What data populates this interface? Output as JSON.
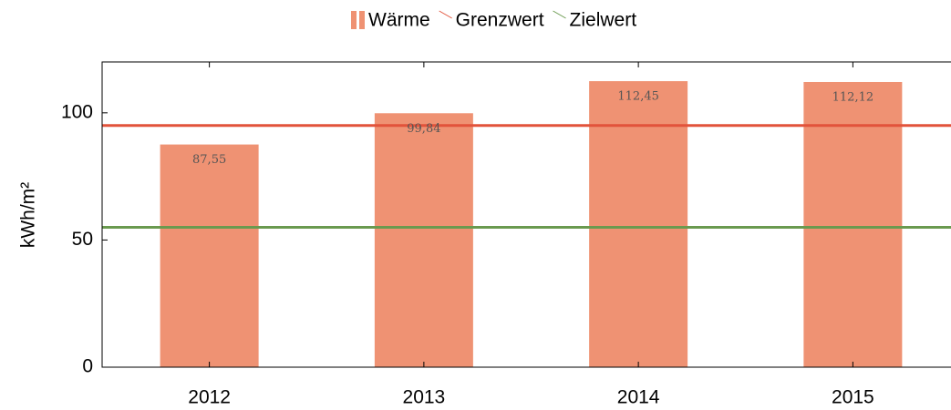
{
  "chart_data": {
    "type": "bar",
    "y_label": "kWh/m²",
    "categories": [
      "2012",
      "2013",
      "2014",
      "2015"
    ],
    "series": [
      {
        "name": "Wärme",
        "color": "#ef9273",
        "values": [
          87.55,
          99.84,
          112.45,
          112.12
        ],
        "value_labels": [
          "87,55",
          "99,84",
          "112,45",
          "112,12"
        ]
      }
    ],
    "reference_lines": [
      {
        "name": "Grenzwert",
        "value": 95,
        "color": "#e2533b"
      },
      {
        "name": "Zielwert",
        "value": 55,
        "color": "#6a9a4f"
      }
    ],
    "ylim": [
      0,
      120
    ],
    "yticks": [
      0,
      50,
      100
    ],
    "legend": "top"
  }
}
